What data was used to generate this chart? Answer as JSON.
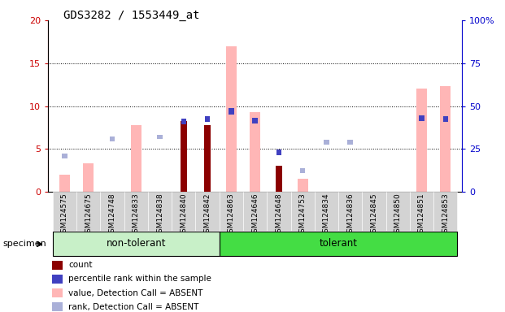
{
  "title": "GDS3282 / 1553449_at",
  "samples": [
    "GSM124575",
    "GSM124675",
    "GSM124748",
    "GSM124833",
    "GSM124838",
    "GSM124840",
    "GSM124842",
    "GSM124863",
    "GSM124646",
    "GSM124648",
    "GSM124753",
    "GSM124834",
    "GSM124836",
    "GSM124845",
    "GSM124850",
    "GSM124851",
    "GSM124853"
  ],
  "groups": [
    {
      "name": "non-tolerant",
      "start": 0,
      "end": 7,
      "color": "#c8f0c8"
    },
    {
      "name": "tolerant",
      "start": 7,
      "end": 17,
      "color": "#44dd44"
    }
  ],
  "value_absent": [
    2.0,
    3.3,
    null,
    7.8,
    null,
    null,
    null,
    17.0,
    9.3,
    null,
    1.5,
    null,
    null,
    null,
    null,
    12.0,
    12.3
  ],
  "rank_absent_left": [
    4.2,
    null,
    6.2,
    null,
    6.4,
    null,
    null,
    null,
    null,
    null,
    2.5,
    5.8,
    5.8,
    null,
    null,
    null,
    8.5
  ],
  "count": [
    null,
    null,
    null,
    null,
    null,
    8.3,
    7.8,
    null,
    null,
    3.0,
    null,
    null,
    null,
    null,
    null,
    null,
    null
  ],
  "percentile_rank_right": [
    null,
    null,
    null,
    null,
    null,
    41.0,
    42.5,
    47.0,
    41.5,
    23.0,
    null,
    null,
    null,
    null,
    null,
    43.0,
    42.5
  ],
  "left_ylim": [
    0,
    20
  ],
  "right_ylim": [
    0,
    100
  ],
  "left_yticks": [
    0,
    5,
    10,
    15,
    20
  ],
  "right_yticks": [
    0,
    25,
    50,
    75,
    100
  ],
  "colors": {
    "count": "#8b0000",
    "percentile_rank": "#4040c0",
    "value_absent": "#ffb6b6",
    "rank_absent": "#aab0d8",
    "axis_left": "#cc0000",
    "axis_right": "#0000cc",
    "bg_sample": "#d3d3d3"
  },
  "legend": [
    {
      "label": "count",
      "color": "#8b0000"
    },
    {
      "label": "percentile rank within the sample",
      "color": "#4040c0"
    },
    {
      "label": "value, Detection Call = ABSENT",
      "color": "#ffb6b6"
    },
    {
      "label": "rank, Detection Call = ABSENT",
      "color": "#aab0d8"
    }
  ]
}
